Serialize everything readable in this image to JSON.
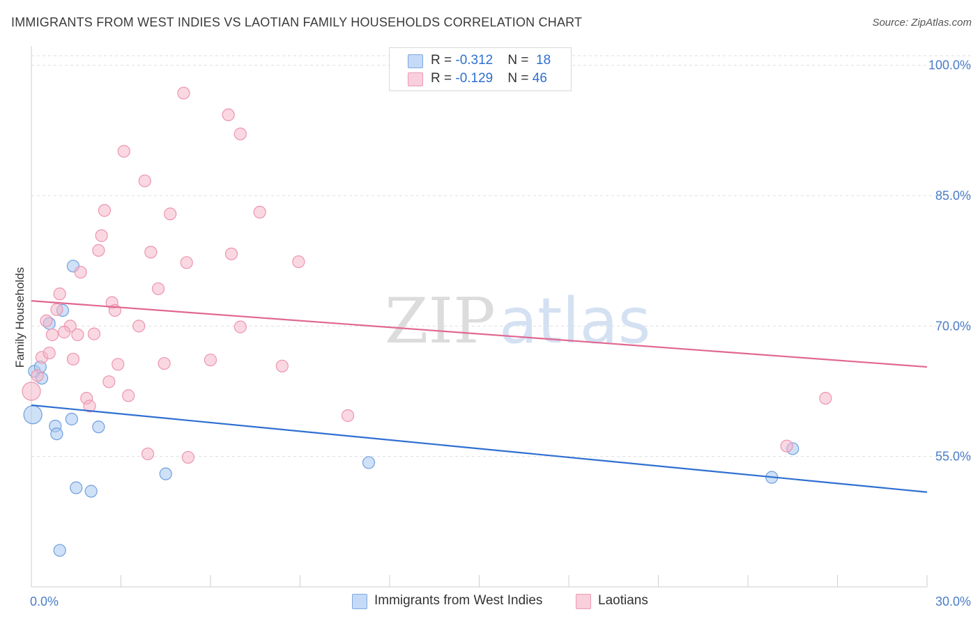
{
  "header": {
    "title": "IMMIGRANTS FROM WEST INDIES VS LAOTIAN FAMILY HOUSEHOLDS CORRELATION CHART",
    "source": "Source: ZipAtlas.com"
  },
  "legend": {
    "rows": [
      {
        "r_label": "R = ",
        "r_value": "-0.312",
        "n_label": "N = ",
        "n_value": "18",
        "color": "#a8c8f0"
      },
      {
        "r_label": "R = ",
        "r_value": "-0.129",
        "n_label": "N = ",
        "n_value": "46",
        "color": "#f5b8cb"
      }
    ]
  },
  "watermark": {
    "zip": "ZIP",
    "atlas": "atlas"
  },
  "chart_data": {
    "type": "scatter",
    "title": "IMMIGRANTS FROM WEST INDIES VS LAOTIAN FAMILY HOUSEHOLDS CORRELATION CHART",
    "xlabel": "",
    "ylabel": "Family Households",
    "xlim": [
      0,
      30
    ],
    "ylim": [
      40,
      101.5
    ],
    "x_ticks_labels": [
      "0.0%",
      "30.0%"
    ],
    "y_tick_values": [
      55,
      70,
      85,
      100
    ],
    "y_ticks_labels": [
      "55.0%",
      "70.0%",
      "85.0%",
      "100.0%"
    ],
    "grid": "horizontal dashed",
    "legend_position": "top-center",
    "series": [
      {
        "name": "Immigrants from West Indies",
        "color": "#a8c8f0",
        "stroke": "#6f9fdc",
        "line_color": "#2f6fd1",
        "trend": [
          [
            0,
            60.9
          ],
          [
            30,
            50.9
          ]
        ],
        "points": [
          [
            0.1,
            64.8
          ],
          [
            0.3,
            65.3
          ],
          [
            0.35,
            64.0
          ],
          [
            0.6,
            70.3
          ],
          [
            1.05,
            71.8
          ],
          [
            1.4,
            76.9
          ],
          [
            0.8,
            58.5
          ],
          [
            0.85,
            57.6
          ],
          [
            1.35,
            59.3
          ],
          [
            2.25,
            58.4
          ],
          [
            0.05,
            59.8
          ],
          [
            1.5,
            51.4
          ],
          [
            2.0,
            51.0
          ],
          [
            4.5,
            53.0
          ],
          [
            0.95,
            44.2
          ],
          [
            11.3,
            54.3
          ],
          [
            25.5,
            55.9
          ],
          [
            24.8,
            52.6
          ]
        ]
      },
      {
        "name": "Laotians",
        "color": "#f5b8cb",
        "stroke": "#ec94b0",
        "line_color": "#e0678f",
        "trend": [
          [
            0,
            72.9
          ],
          [
            30,
            65.3
          ]
        ],
        "points": [
          [
            5.1,
            96.8
          ],
          [
            6.6,
            94.3
          ],
          [
            7.0,
            92.1
          ],
          [
            3.1,
            90.1
          ],
          [
            3.8,
            86.7
          ],
          [
            2.45,
            83.3
          ],
          [
            4.65,
            82.9
          ],
          [
            7.65,
            83.1
          ],
          [
            2.35,
            80.4
          ],
          [
            2.25,
            78.7
          ],
          [
            4.0,
            78.5
          ],
          [
            6.7,
            78.3
          ],
          [
            5.2,
            77.3
          ],
          [
            8.95,
            77.4
          ],
          [
            1.65,
            76.2
          ],
          [
            4.25,
            74.3
          ],
          [
            0.95,
            73.7
          ],
          [
            2.7,
            72.7
          ],
          [
            0.85,
            71.9
          ],
          [
            2.8,
            71.8
          ],
          [
            0.5,
            70.6
          ],
          [
            1.3,
            70.0
          ],
          [
            3.6,
            70.0
          ],
          [
            7.0,
            69.9
          ],
          [
            0.7,
            69.0
          ],
          [
            1.1,
            69.3
          ],
          [
            1.55,
            69.0
          ],
          [
            2.1,
            69.1
          ],
          [
            0.35,
            66.4
          ],
          [
            0.6,
            66.9
          ],
          [
            1.4,
            66.2
          ],
          [
            2.9,
            65.6
          ],
          [
            4.45,
            65.7
          ],
          [
            6.0,
            66.1
          ],
          [
            8.4,
            65.4
          ],
          [
            0.2,
            64.3
          ],
          [
            2.6,
            63.6
          ],
          [
            0.0,
            62.5
          ],
          [
            3.25,
            62.0
          ],
          [
            1.85,
            61.7
          ],
          [
            1.95,
            60.8
          ],
          [
            10.6,
            59.7
          ],
          [
            3.9,
            55.3
          ],
          [
            5.25,
            54.9
          ],
          [
            25.3,
            56.2
          ],
          [
            26.6,
            61.7
          ]
        ]
      }
    ]
  }
}
